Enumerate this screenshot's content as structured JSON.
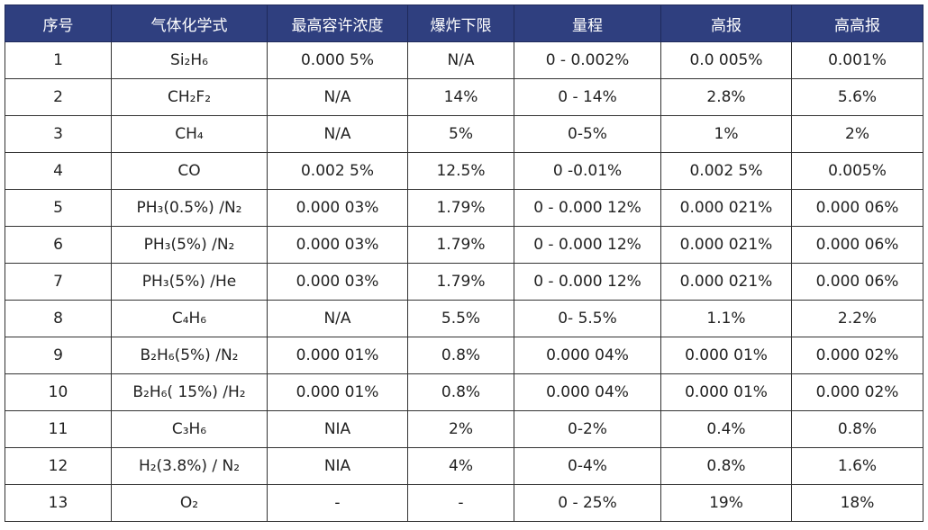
{
  "table": {
    "headers": [
      "序号",
      "气体化学式",
      "最高容许浓度",
      "爆炸下限",
      "量程",
      "高报",
      "高高报"
    ],
    "rows": [
      [
        "1",
        "Si₂H₆",
        "0.000 5%",
        "N/A",
        "0 - 0.002%",
        "0.0 005%",
        "0.001%"
      ],
      [
        "2",
        "CH₂F₂",
        "N/A",
        "14%",
        "0 - 14%",
        "2.8%",
        "5.6%"
      ],
      [
        "3",
        "CH₄",
        "N/A",
        "5%",
        "0-5%",
        "1%",
        "2%"
      ],
      [
        "4",
        "CO",
        "0.002 5%",
        "12.5%",
        "0 -0.01%",
        "0.002 5%",
        "0.005%"
      ],
      [
        "5",
        "PH₃(0.5%) /N₂",
        "0.000 03%",
        "1.79%",
        "0 - 0.000 12%",
        "0.000 021%",
        "0.000 06%"
      ],
      [
        "6",
        "PH₃(5%) /N₂",
        "0.000 03%",
        "1.79%",
        "0 - 0.000 12%",
        "0.000 021%",
        "0.000 06%"
      ],
      [
        "7",
        "PH₃(5%) /He",
        "0.000 03%",
        "1.79%",
        "0 - 0.000 12%",
        "0.000 021%",
        "0.000 06%"
      ],
      [
        "8",
        "C₄H₆",
        "N/A",
        "5.5%",
        "0- 5.5%",
        "1.1%",
        "2.2%"
      ],
      [
        "9",
        "B₂H₆(5%) /N₂",
        "0.000 01%",
        "0.8%",
        "0.000 04%",
        "0.000 01%",
        "0.000 02%"
      ],
      [
        "10",
        "B₂H₆( 15%) /H₂",
        "0.000 01%",
        "0.8%",
        "0.000 04%",
        "0.000 01%",
        "0.000 02%"
      ],
      [
        "11",
        "C₃H₆",
        "NIA",
        "2%",
        "0-2%",
        "0.4%",
        "0.8%"
      ],
      [
        "12",
        "H₂(3.8%) / N₂",
        "NIA",
        "4%",
        "0-4%",
        "0.8%",
        "1.6%"
      ],
      [
        "13",
        "O₂",
        "-",
        "-",
        "0 - 25%",
        "19%",
        "18%"
      ]
    ]
  }
}
